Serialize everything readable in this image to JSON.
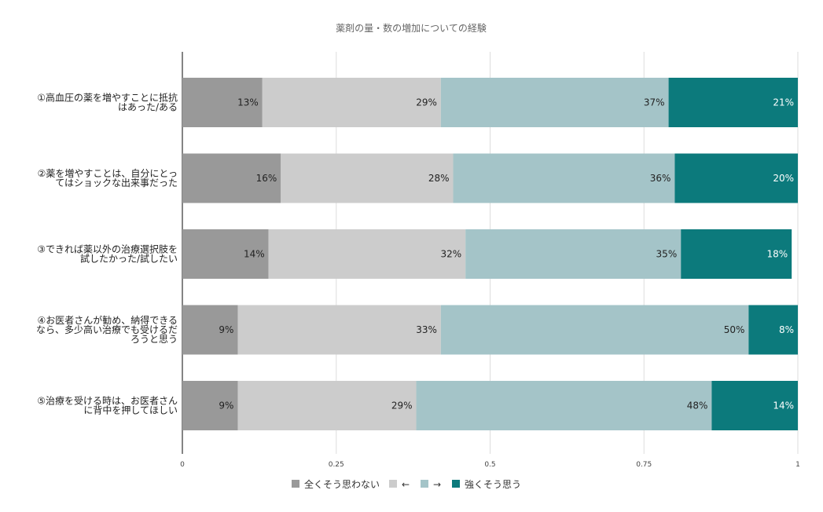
{
  "chart_data": {
    "type": "bar",
    "orientation": "horizontal",
    "stacked": true,
    "title": "薬剤の量・数の増加についての経験",
    "categories": [
      [
        "①高血圧の薬を増やすことに抵抗",
        "はあった/ある"
      ],
      [
        "②薬を増やすことは、自分にとっ",
        "てはショックな出来事だった"
      ],
      [
        "③できれば薬以外の治療選択肢を",
        "試したかった/試したい"
      ],
      [
        "④お医者さんが勧め、納得できる",
        "なら、多少高い治療でも受けるだ",
        "ろうと思う"
      ],
      [
        "⑤治療を受ける時は、お医者さん",
        "に背中を押してほしい"
      ]
    ],
    "series": [
      {
        "name": "全くそう思わない",
        "color": "#999999",
        "label_color": "#222222",
        "values": [
          0.13,
          0.16,
          0.14,
          0.09,
          0.09
        ],
        "labels": [
          "13%",
          "16%",
          "14%",
          "9%",
          "9%"
        ]
      },
      {
        "name": "←",
        "color": "#cccccc",
        "label_color": "#222222",
        "values": [
          0.29,
          0.28,
          0.32,
          0.33,
          0.29
        ],
        "labels": [
          "29%",
          "28%",
          "32%",
          "33%",
          "29%"
        ]
      },
      {
        "name": "→",
        "color": "#a4c4c8",
        "label_color": "#222222",
        "values": [
          0.37,
          0.36,
          0.35,
          0.5,
          0.48
        ],
        "labels": [
          "37%",
          "36%",
          "35%",
          "50%",
          "48%"
        ]
      },
      {
        "name": "強くそう思う",
        "color": "#0c7a7c",
        "label_color": "#ffffff",
        "values": [
          0.21,
          0.2,
          0.18,
          0.08,
          0.14
        ],
        "labels": [
          "21%",
          "20%",
          "18%",
          "8%",
          "14%"
        ]
      }
    ],
    "x_ticks": [
      0,
      0.25,
      0.5,
      0.75,
      1
    ],
    "x_tick_labels": [
      "0",
      "0.25",
      "0.5",
      "0.75",
      "1"
    ],
    "xlim": [
      0,
      1
    ],
    "grid": true,
    "legend_position": "bottom"
  }
}
